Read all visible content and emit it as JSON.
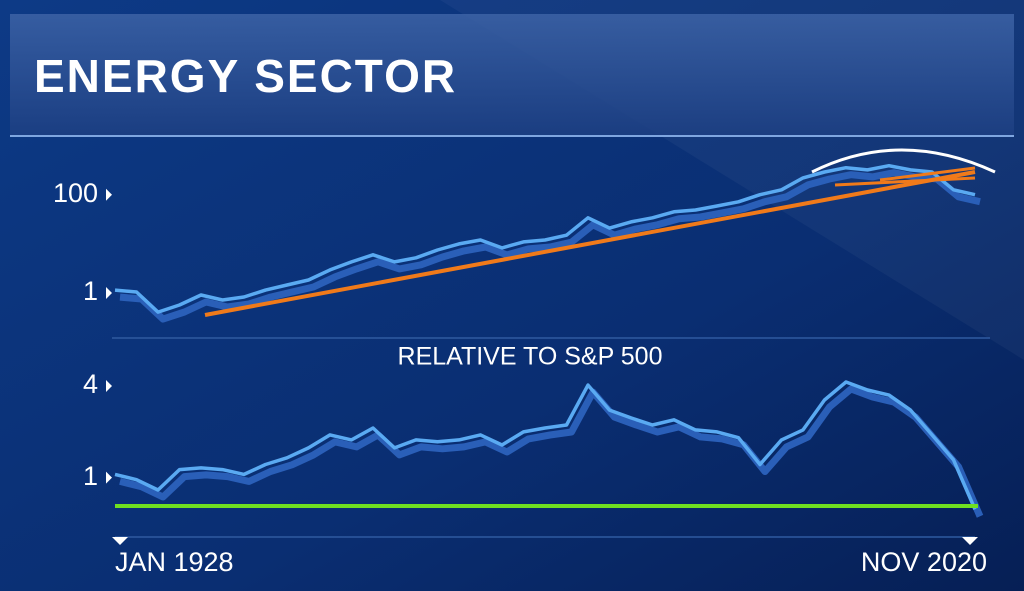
{
  "title": "ENERGY SECTOR",
  "chart_data": [
    {
      "type": "line",
      "log_scale": true,
      "categories": [
        null,
        null,
        null,
        null,
        null,
        null,
        null,
        null,
        null,
        null,
        null,
        null,
        null,
        null,
        null,
        null,
        null,
        null,
        null,
        null,
        null,
        null,
        null,
        null,
        null,
        null,
        null,
        null,
        null,
        null,
        null,
        null,
        null,
        null,
        null,
        null,
        null,
        null,
        null,
        null,
        null
      ],
      "series": [
        {
          "color": "#5aaaf2",
          "values": [
            1.15,
            1.05,
            0.41,
            0.57,
            0.91,
            0.72,
            0.83,
            1.15,
            1.46,
            1.84,
            2.95,
            4.3,
            6.0,
            4.3,
            5.2,
            7.5,
            10,
            12,
            8.3,
            11,
            12,
            15,
            34,
            21,
            28,
            34,
            45,
            49,
            59,
            72,
            100,
            126,
            220,
            290,
            355,
            320,
            390,
            320,
            290,
            126,
            100
          ]
        }
      ],
      "ylim": [
        0.14,
        1300
      ],
      "yticks": [
        1,
        100
      ]
    },
    {
      "type": "line",
      "log_scale": true,
      "title": "RELATIVE TO S&P 500",
      "categories": [
        "JAN 1928",
        null,
        null,
        null,
        null,
        null,
        null,
        null,
        null,
        null,
        null,
        null,
        null,
        null,
        null,
        null,
        null,
        null,
        null,
        null,
        null,
        null,
        null,
        null,
        null,
        null,
        null,
        null,
        null,
        null,
        null,
        null,
        null,
        null,
        null,
        null,
        null,
        null,
        null,
        null,
        "NOV 2020"
      ],
      "series": [
        {
          "color": "#5aaaf2",
          "values": [
            1.05,
            0.97,
            0.83,
            1.13,
            1.16,
            1.13,
            1.05,
            1.22,
            1.35,
            1.57,
            1.91,
            1.77,
            2.12,
            1.57,
            1.77,
            1.72,
            1.77,
            1.91,
            1.64,
            2.0,
            2.12,
            2.22,
            4.06,
            2.78,
            2.47,
            2.22,
            2.4,
            2.06,
            2.0,
            1.83,
            1.22,
            1.77,
            2.06,
            3.24,
            4.25,
            3.77,
            3.49,
            2.78,
            1.91,
            1.31,
            0.62
          ]
        }
      ],
      "ylim": [
        0.42,
        5.5
      ],
      "yticks": [
        1,
        4
      ]
    }
  ]
}
